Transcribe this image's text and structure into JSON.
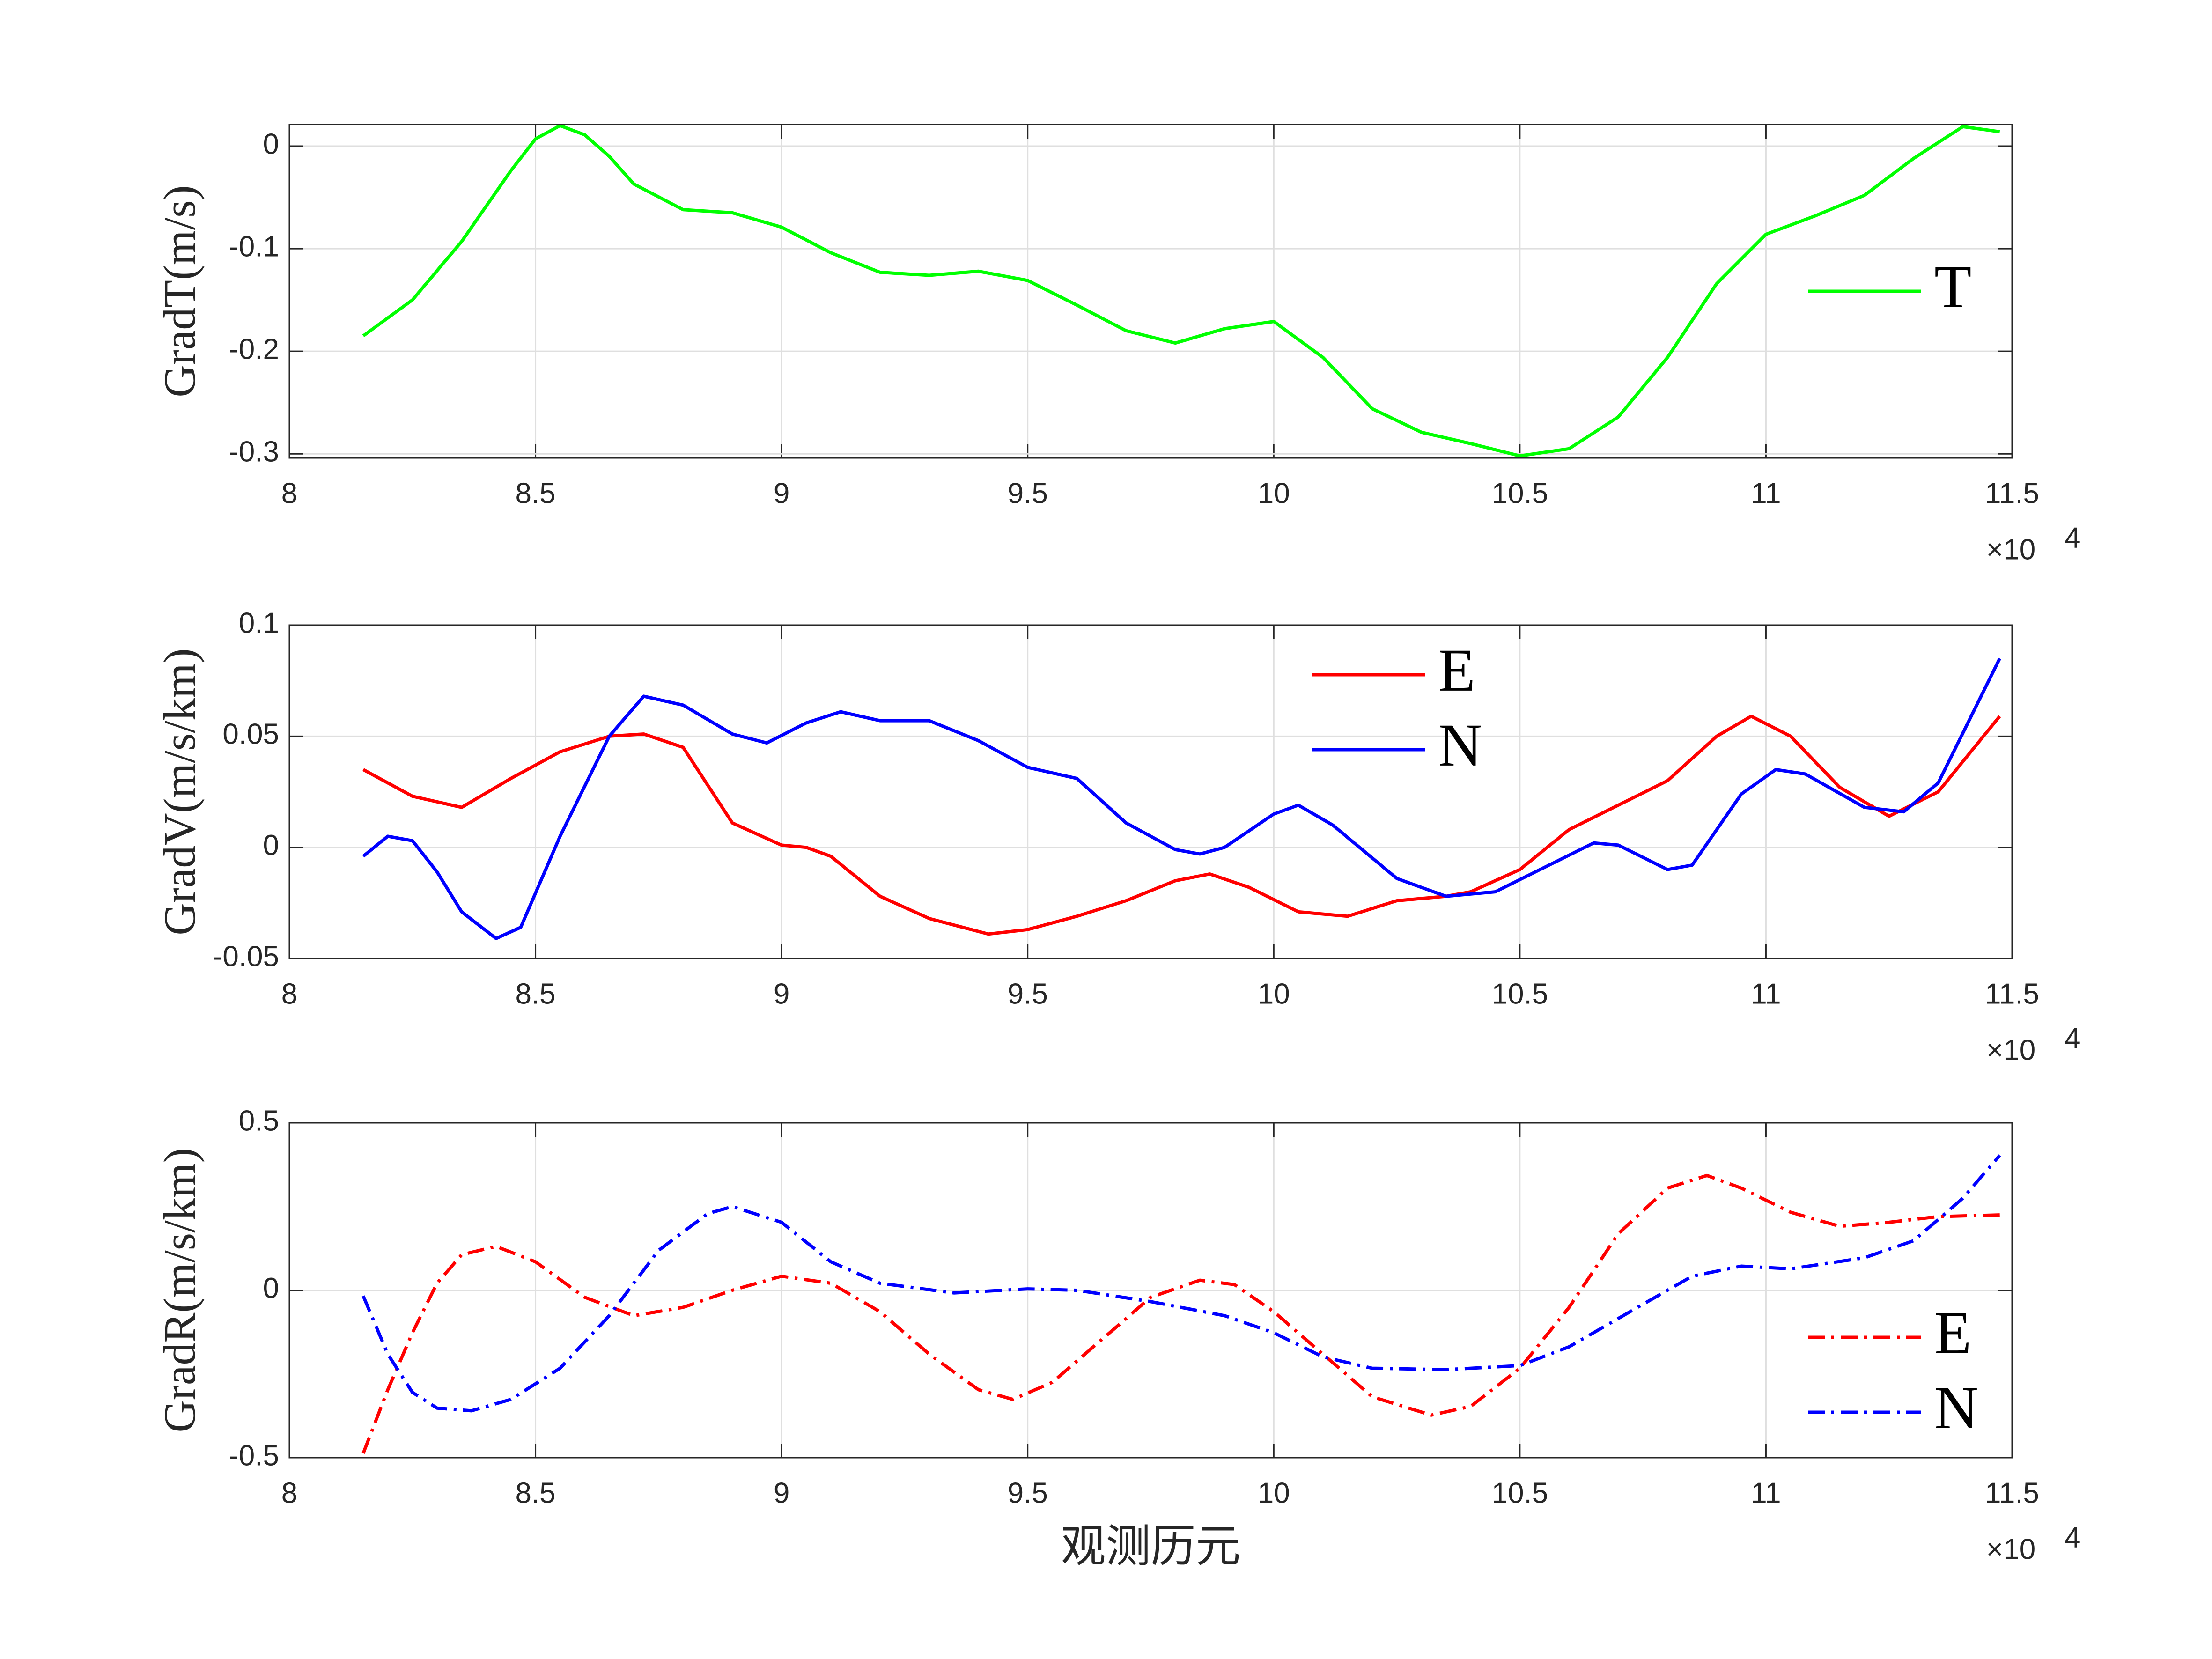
{
  "chart_data": [
    {
      "type": "line",
      "ylabel": "GradT(m/s)",
      "x_multiplier": {
        "base": "×10",
        "exponent": "4"
      },
      "xlim": [
        8,
        11.5
      ],
      "xticks": [
        8,
        8.5,
        9,
        9.5,
        10,
        10.5,
        11,
        11.5
      ],
      "ylim": [
        -0.304,
        0.021
      ],
      "yticks": [
        -0.3,
        -0.2,
        -0.1,
        0
      ],
      "grid": true,
      "legend": "east",
      "series": [
        {
          "name": "T",
          "color": "#00ff00",
          "line_style": "solid",
          "x": [
            8.15,
            8.25,
            8.35,
            8.45,
            8.5,
            8.55,
            8.6,
            8.65,
            8.7,
            8.8,
            8.9,
            9.0,
            9.1,
            9.2,
            9.3,
            9.4,
            9.5,
            9.6,
            9.7,
            9.8,
            9.9,
            10.0,
            10.1,
            10.2,
            10.3,
            10.4,
            10.5,
            10.6,
            10.7,
            10.8,
            10.9,
            11.0,
            11.1,
            11.2,
            11.3,
            11.4,
            11.475
          ],
          "values": [
            -0.185,
            -0.15,
            -0.093,
            -0.024,
            0.007,
            0.02,
            0.011,
            -0.01,
            -0.037,
            -0.062,
            -0.065,
            -0.079,
            -0.104,
            -0.123,
            -0.126,
            -0.122,
            -0.131,
            -0.155,
            -0.18,
            -0.192,
            -0.178,
            -0.171,
            -0.206,
            -0.256,
            -0.279,
            -0.29,
            -0.302,
            -0.295,
            -0.264,
            -0.206,
            -0.134,
            -0.086,
            -0.068,
            -0.048,
            -0.012,
            0.019,
            0.014
          ]
        }
      ]
    },
    {
      "type": "line",
      "ylabel": "GradV(m/s/km)",
      "x_multiplier": {
        "base": "×10",
        "exponent": "4"
      },
      "xlim": [
        8,
        11.5
      ],
      "xticks": [
        8,
        8.5,
        9,
        9.5,
        10,
        10.5,
        11,
        11.5
      ],
      "ylim": [
        -0.05,
        0.1
      ],
      "yticks": [
        -0.05,
        0,
        0.05,
        0.1
      ],
      "grid": true,
      "legend": "north",
      "series": [
        {
          "name": "E",
          "color": "#ff0000",
          "line_style": "solid",
          "x": [
            8.15,
            8.25,
            8.35,
            8.45,
            8.55,
            8.65,
            8.72,
            8.8,
            8.9,
            9.0,
            9.05,
            9.1,
            9.2,
            9.3,
            9.42,
            9.5,
            9.6,
            9.7,
            9.8,
            9.87,
            9.95,
            10.05,
            10.15,
            10.25,
            10.35,
            10.4,
            10.5,
            10.6,
            10.7,
            10.8,
            10.9,
            10.97,
            11.05,
            11.15,
            11.25,
            11.35,
            11.475
          ],
          "values": [
            0.035,
            0.023,
            0.018,
            0.031,
            0.043,
            0.05,
            0.051,
            0.045,
            0.011,
            0.001,
            0,
            -0.004,
            -0.022,
            -0.032,
            -0.039,
            -0.037,
            -0.031,
            -0.024,
            -0.015,
            -0.012,
            -0.018,
            -0.029,
            -0.031,
            -0.024,
            -0.022,
            -0.02,
            -0.01,
            0.008,
            0.019,
            0.03,
            0.05,
            0.059,
            0.05,
            0.027,
            0.014,
            0.025,
            0.059
          ]
        },
        {
          "name": "N",
          "color": "#0000ff",
          "line_style": "solid",
          "x": [
            8.15,
            8.2,
            8.25,
            8.3,
            8.35,
            8.42,
            8.47,
            8.55,
            8.65,
            8.72,
            8.8,
            8.9,
            8.97,
            9.05,
            9.12,
            9.2,
            9.3,
            9.4,
            9.5,
            9.6,
            9.7,
            9.8,
            9.85,
            9.9,
            10.0,
            10.05,
            10.12,
            10.25,
            10.35,
            10.45,
            10.55,
            10.65,
            10.7,
            10.8,
            10.85,
            10.95,
            11.02,
            11.08,
            11.2,
            11.28,
            11.35,
            11.475
          ],
          "values": [
            -0.004,
            0.005,
            0.003,
            -0.011,
            -0.029,
            -0.041,
            -0.036,
            0.005,
            0.05,
            0.068,
            0.064,
            0.051,
            0.047,
            0.056,
            0.061,
            0.057,
            0.057,
            0.048,
            0.036,
            0.031,
            0.011,
            -0.001,
            -0.003,
            0,
            0.015,
            0.019,
            0.01,
            -0.014,
            -0.022,
            -0.02,
            -0.009,
            0.002,
            0.001,
            -0.01,
            -0.008,
            0.024,
            0.035,
            0.033,
            0.018,
            0.016,
            0.029,
            0.085
          ]
        }
      ]
    },
    {
      "type": "line",
      "ylabel": "GradR(m/s/km)",
      "xlabel": "观测历元",
      "x_multiplier": {
        "base": "×10",
        "exponent": "4"
      },
      "xlim": [
        8,
        11.5
      ],
      "xticks": [
        8,
        8.5,
        9,
        9.5,
        10,
        10.5,
        11,
        11.5
      ],
      "ylim": [
        -0.5,
        0.5
      ],
      "yticks": [
        -0.5,
        0,
        0.5
      ],
      "grid": true,
      "legend": "southeast",
      "series": [
        {
          "name": "E",
          "color": "#ff0000",
          "line_style": "dashdot",
          "x": [
            8.15,
            8.2,
            8.25,
            8.3,
            8.35,
            8.42,
            8.5,
            8.6,
            8.7,
            8.8,
            8.9,
            9.0,
            9.1,
            9.2,
            9.3,
            9.4,
            9.47,
            9.55,
            9.65,
            9.75,
            9.85,
            9.92,
            10.0,
            10.1,
            10.2,
            10.32,
            10.4,
            10.5,
            10.6,
            10.7,
            10.8,
            10.88,
            10.95,
            11.05,
            11.15,
            11.25,
            11.35,
            11.475
          ],
          "values": [
            -0.487,
            -0.297,
            -0.127,
            0.021,
            0.106,
            0.131,
            0.085,
            -0.021,
            -0.076,
            -0.051,
            0,
            0.042,
            0.021,
            -0.064,
            -0.191,
            -0.297,
            -0.326,
            -0.275,
            -0.148,
            -0.021,
            0.03,
            0.017,
            -0.064,
            -0.191,
            -0.318,
            -0.373,
            -0.347,
            -0.233,
            -0.051,
            0.169,
            0.305,
            0.343,
            0.305,
            0.233,
            0.191,
            0.203,
            0.22,
            0.225
          ]
        },
        {
          "name": "N",
          "color": "#0000ff",
          "line_style": "dashdot",
          "x": [
            8.15,
            8.2,
            8.25,
            8.3,
            8.37,
            8.45,
            8.55,
            8.65,
            8.75,
            8.85,
            8.9,
            9.0,
            9.1,
            9.2,
            9.35,
            9.5,
            9.6,
            9.75,
            9.9,
            10.0,
            10.1,
            10.2,
            10.35,
            10.5,
            10.6,
            10.75,
            10.85,
            10.95,
            11.05,
            11.2,
            11.3,
            11.4,
            11.475
          ],
          "values": [
            -0.017,
            -0.191,
            -0.305,
            -0.352,
            -0.36,
            -0.326,
            -0.233,
            -0.076,
            0.119,
            0.229,
            0.25,
            0.203,
            0.085,
            0.021,
            -0.008,
            0.004,
            0,
            -0.034,
            -0.076,
            -0.127,
            -0.199,
            -0.233,
            -0.237,
            -0.225,
            -0.169,
            -0.042,
            0.042,
            0.072,
            0.064,
            0.097,
            0.148,
            0.275,
            0.403
          ]
        }
      ]
    }
  ]
}
